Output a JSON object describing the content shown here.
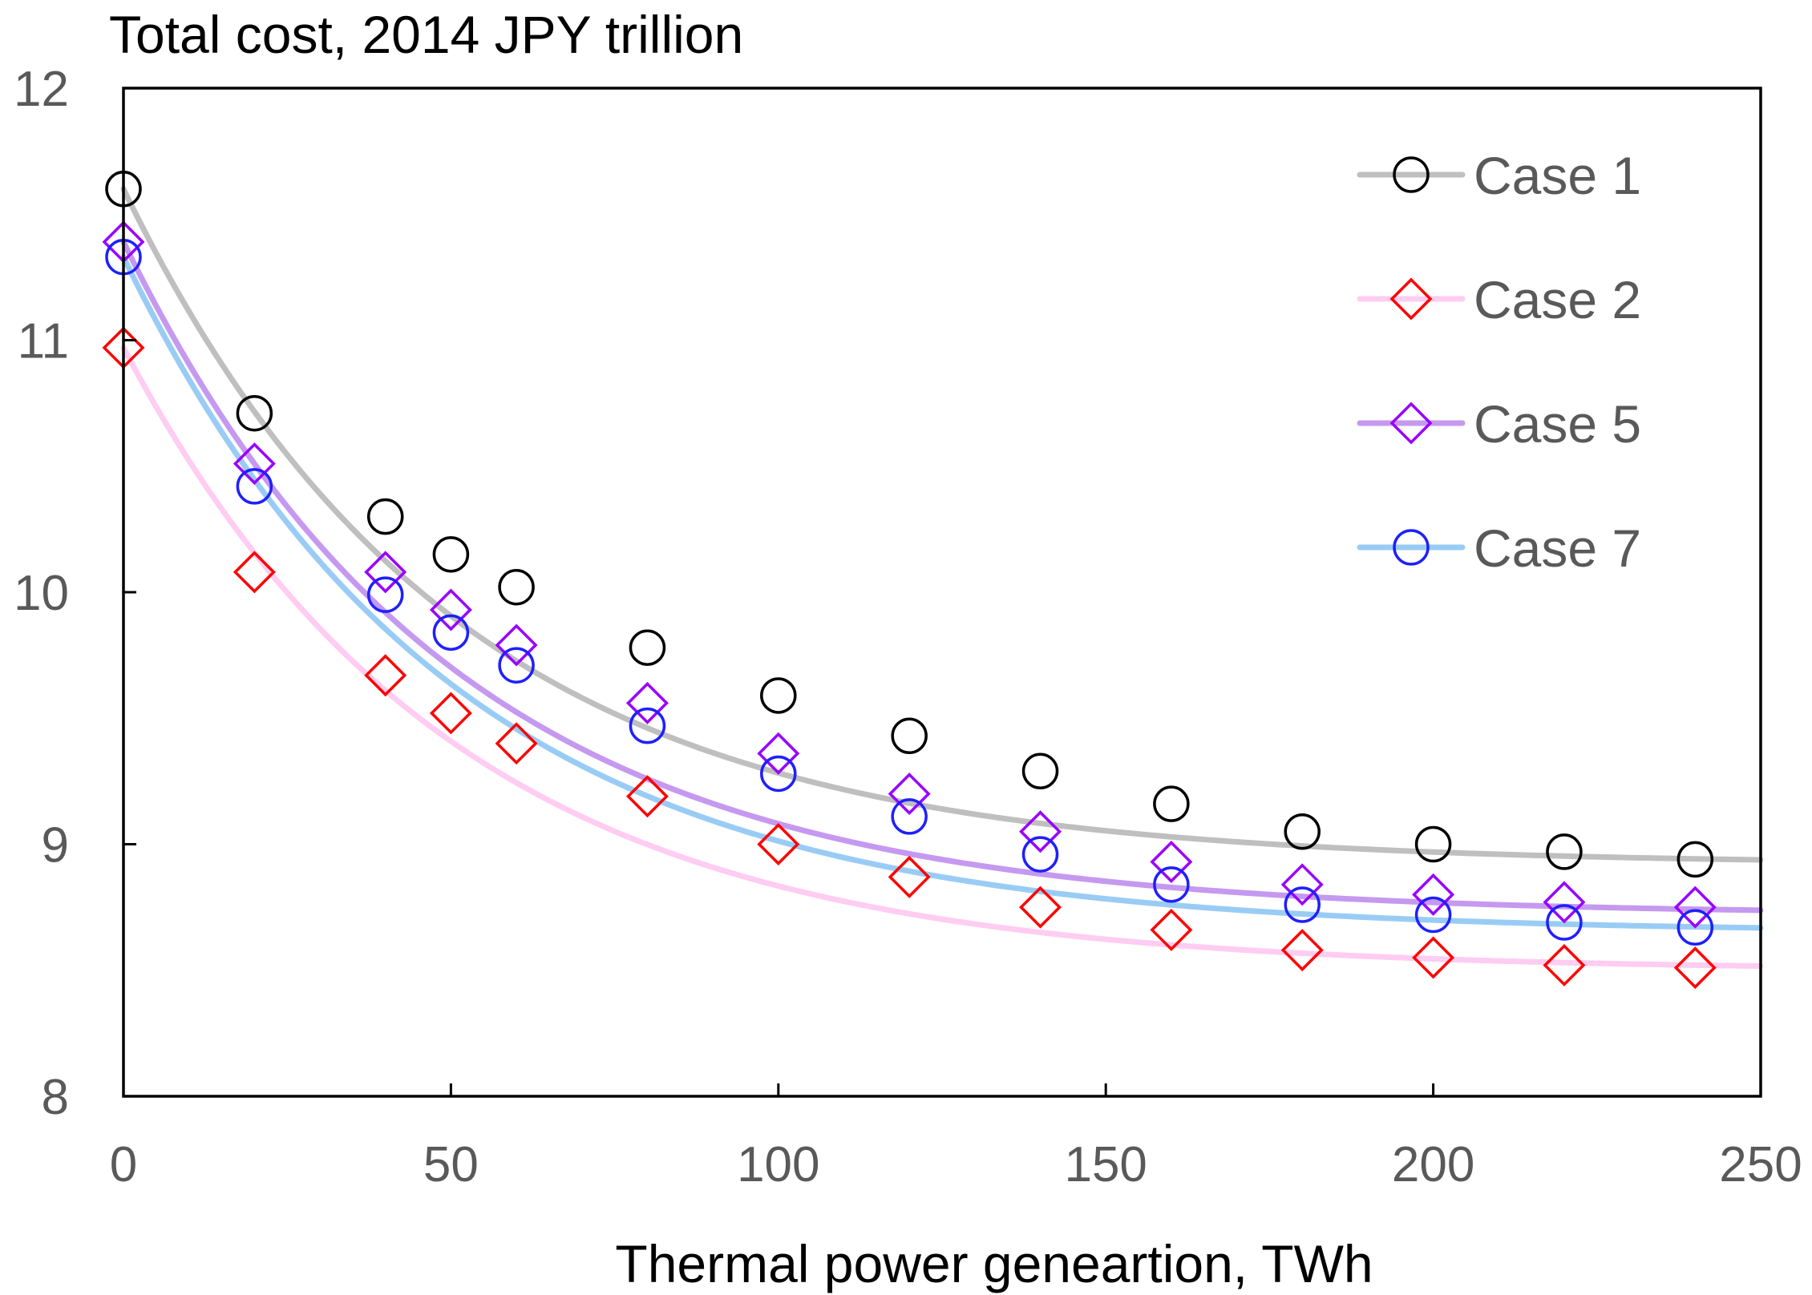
{
  "chart_data": {
    "type": "scatter",
    "title": "Total cost, 2014 JPY trillion",
    "xlabel": "Thermal power geneartion, TWh",
    "ylabel": "",
    "xlim": [
      0,
      250
    ],
    "ylim": [
      8,
      12
    ],
    "x_ticks": [
      0,
      50,
      100,
      150,
      200,
      250
    ],
    "y_ticks": [
      8,
      9,
      10,
      11,
      12
    ],
    "x_tick_labels": [
      "0",
      "50",
      "100",
      "150",
      "200",
      "250"
    ],
    "y_tick_labels": [
      "8",
      "9",
      "10",
      "11",
      "12"
    ],
    "grid": false,
    "legend_position": "top-right",
    "x": [
      0,
      20,
      40,
      50,
      60,
      80,
      100,
      120,
      140,
      160,
      180,
      200,
      220,
      240
    ],
    "series": [
      {
        "name": "Case 1",
        "marker": "circle",
        "marker_color": "#000000",
        "line_color": "#bfbfbf",
        "values": [
          11.6,
          10.71,
          10.3,
          10.15,
          10.02,
          9.78,
          9.59,
          9.43,
          9.29,
          9.16,
          9.05,
          9.0,
          8.97,
          8.94
        ],
        "fit_asymptote": 8.92,
        "fit_amplitude": 2.68,
        "fit_decay": 0.02
      },
      {
        "name": "Case 2",
        "marker": "diamond",
        "marker_color": "#ff0000",
        "line_color": "#ffccf2",
        "values": [
          10.97,
          10.08,
          9.67,
          9.52,
          9.4,
          9.19,
          9.0,
          8.87,
          8.75,
          8.66,
          8.58,
          8.55,
          8.52,
          8.51
        ],
        "fit_asymptote": 8.5,
        "fit_amplitude": 2.47,
        "fit_decay": 0.02
      },
      {
        "name": "Case 5",
        "marker": "diamond",
        "marker_color": "#9900ff",
        "line_color": "#c599f0",
        "values": [
          11.39,
          10.51,
          10.08,
          9.93,
          9.79,
          9.56,
          9.36,
          9.2,
          9.05,
          8.93,
          8.84,
          8.8,
          8.77,
          8.75
        ],
        "fit_asymptote": 8.72,
        "fit_amplitude": 2.67,
        "fit_decay": 0.02
      },
      {
        "name": "Case 7",
        "marker": "circle",
        "marker_color": "#1f1fff",
        "line_color": "#99ccf5",
        "values": [
          11.33,
          10.42,
          9.99,
          9.84,
          9.71,
          9.47,
          9.28,
          9.11,
          8.96,
          8.84,
          8.76,
          8.72,
          8.69,
          8.67
        ],
        "fit_asymptote": 8.65,
        "fit_amplitude": 2.68,
        "fit_decay": 0.02
      }
    ]
  }
}
